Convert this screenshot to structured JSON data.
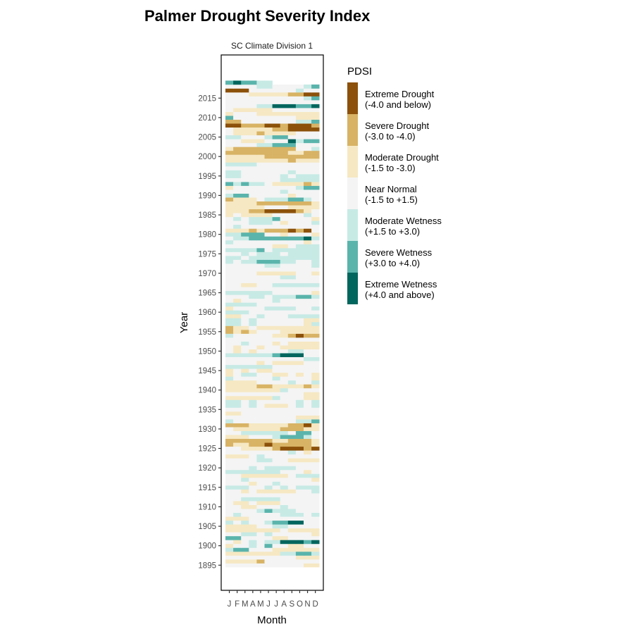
{
  "chart_data": {
    "type": "heatmap",
    "title": "Palmer Drought Severity Index",
    "subtitle": "SC Climate Division 1",
    "xlabel": "Month",
    "ylabel": "Year",
    "x_tick_labels": [
      "J",
      "F",
      "M",
      "A",
      "M",
      "J",
      "J",
      "A",
      "S",
      "O",
      "N",
      "D"
    ],
    "y_ticks": [
      1895,
      1900,
      1905,
      1910,
      1915,
      1920,
      1925,
      1930,
      1935,
      1940,
      1945,
      1950,
      1955,
      1960,
      1965,
      1970,
      1975,
      1980,
      1985,
      1990,
      1995,
      2000,
      2005,
      2010,
      2015
    ],
    "legend": {
      "title": "PDSI",
      "classes": [
        {
          "label": "Extreme Drought",
          "range": "(-4.0 and below)",
          "color": "#8c510a"
        },
        {
          "label": "Severe Drought",
          "range": "(-3.0 to -4.0)",
          "color": "#d8b365"
        },
        {
          "label": "Moderate Drought",
          "range": "(-1.5 to -3.0)",
          "color": "#f6e8c3"
        },
        {
          "label": "Near Normal",
          "range": "(-1.5 to +1.5)",
          "color": "#f4f4f4"
        },
        {
          "label": "Moderate Wetness",
          "range": "(+1.5 to +3.0)",
          "color": "#c7eae5"
        },
        {
          "label": "Severe Wetness",
          "range": "(+3.0 to +4.0)",
          "color": "#5ab4ac"
        },
        {
          "label": "Extreme Wetness",
          "range": "(+4.0 and above)",
          "color": "#01665e"
        }
      ]
    },
    "value_encoding": "each digit is a month (Jan..Dec) giving the index into legend.classes",
    "rows": {
      "2019": "565544",
      "2018": "333344333345",
      "2017": "000333333433",
      "2016": "333222221100",
      "2015": "333333333345",
      "2014": "333333333333",
      "2013": "333344666556",
      "2012": "322222333333",
      "2011": "233322222222",
      "2010": "533333333222",
      "2009": "113333333445",
      "2008": "001110010001",
      "2007": "322222110000",
      "2006": "322212222333",
      "2005": "443334553333",
      "2004": "332223336455",
      "2003": "333344555333",
      "2002": "211111111334",
      "2001": "111111112211",
      "2000": "222221111111",
      "1999": "222222221222",
      "1998": "444433333333",
      "1997": "333333333333",
      "1996": "443333334333",
      "1995": "443333343444",
      "1994": "333333344444",
      "1993": "545443222212",
      "1992": "233333333455",
      "1991": "333333343333",
      "1990": "455333332333",
      "1989": "122234445543",
      "1988": "222211111112",
      "1987": "222223332222",
      "1986": "222110000123",
      "1985": "232222333343",
      "1984": "343444533332",
      "1983": "333444323334",
      "1982": "343333333333",
      "1981": "222121110103",
      "1980": "445553323332",
      "1979": "344555555564",
      "1978": "433333333323",
      "1977": "333333223444",
      "1976": "444453444444",
      "1975": "334344434444",
      "1974": "443444444444",
      "1973": "434455544334",
      "1972": "333334433334",
      "1971": "333333333333",
      "1970": "333322222332",
      "1969": "333333344333",
      "1968": "333333333333",
      "1967": "332233444444",
      "1966": "333333333333",
      "1965": "444444333332",
      "1964": "333443444554",
      "1963": "323333433333",
      "1962": "444433333333",
      "1961": "233334444334",
      "1960": "444333333333",
      "1959": "223343334444",
      "1958": "443433333322",
      "1957": "443433333324",
      "1956": "122322222222",
      "1955": "121233322222",
      "1954": "433333221011",
      "1953": "333333333333",
      "1952": "334333232222",
      "1951": "323323322222",
      "1950": "323233334433",
      "1949": "444444566633",
      "1948": "333333333344",
      "1947": "333323222233",
      "1946": "444444333333",
      "1945": "232322333333",
      "1944": "234433223232",
      "1943": "433333433332",
      "1942": "222233334334",
      "1941": "222211222212",
      "1940": "222222243333",
      "1939": "333333333322",
      "1938": "222222433322",
      "1937": "443433333434",
      "1936": "443432223434",
      "1935": "333333333333",
      "1934": "223333333333",
      "1933": "333333333222",
      "1932": "433333333445",
      "1931": "111222221102",
      "1930": "322222211122",
      "1929": "334444443553",
      "1928": "222333455543",
      "1927": "111111221112",
      "1926": "122110111112",
      "1925": "332222100010",
      "1924": "333333334323",
      "1923": "222343333333",
      "1922": "333344332222",
      "1921": "333333333333",
      "1920": "333434444333",
      "1919": "444444433323",
      "1918": "332222223444",
      "1917": "334333333332",
      "1916": "333233433333",
      "1915": "444334343444",
      "1914": "332322222334",
      "1913": "333333333333",
      "1912": "334444433333",
      "1911": "322322233333",
      "1910": "332233343333",
      "1909": "333345444333",
      "1908": "343333344434",
      "1907": "222333333333",
      "1906": "434334556633",
      "1905": "222233443333",
      "1904": "222222232222",
      "1903": "334434333332",
      "1902": "553333223333",
      "1901": "323434466656",
      "1900": "233435332233",
      "1899": "455333222222",
      "1898": "222222244554",
      "1897": "333333333222",
      "1896": "222213333333",
      "1895": "333333333322"
    }
  }
}
